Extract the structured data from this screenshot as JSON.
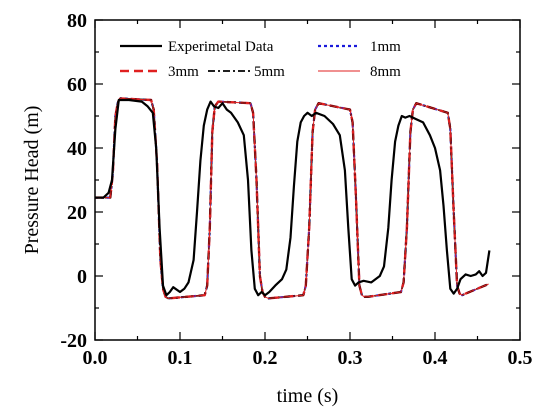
{
  "chart_data": {
    "type": "line",
    "xlabel": "time (s)",
    "ylabel": "Pressure Head (m)",
    "xlim": [
      0.0,
      0.5
    ],
    "ylim": [
      -20,
      80
    ],
    "x_ticks": [
      "0.0",
      "0.1",
      "0.2",
      "0.3",
      "0.4",
      "0.5"
    ],
    "y_ticks": [
      "-20",
      "0",
      "20",
      "40",
      "60",
      "80"
    ],
    "grid": false,
    "legend_position": "top",
    "series": [
      {
        "name": "Experimetal Data",
        "color": "#000000",
        "style": "solid",
        "x": [
          0.0,
          0.01,
          0.016,
          0.02,
          0.024,
          0.028,
          0.04,
          0.055,
          0.062,
          0.068,
          0.072,
          0.076,
          0.08,
          0.084,
          0.088,
          0.092,
          0.1,
          0.105,
          0.11,
          0.116,
          0.12,
          0.124,
          0.128,
          0.132,
          0.136,
          0.14,
          0.145,
          0.15,
          0.155,
          0.16,
          0.168,
          0.175,
          0.18,
          0.184,
          0.188,
          0.192,
          0.196,
          0.2,
          0.205,
          0.212,
          0.22,
          0.225,
          0.23,
          0.234,
          0.238,
          0.242,
          0.246,
          0.25,
          0.255,
          0.26,
          0.27,
          0.28,
          0.288,
          0.294,
          0.298,
          0.302,
          0.306,
          0.31,
          0.316,
          0.325,
          0.335,
          0.34,
          0.345,
          0.349,
          0.353,
          0.357,
          0.361,
          0.365,
          0.37,
          0.378,
          0.386,
          0.394,
          0.4,
          0.406,
          0.41,
          0.414,
          0.418,
          0.422,
          0.426,
          0.43,
          0.436,
          0.442,
          0.448,
          0.452,
          0.456,
          0.46,
          0.464
        ],
        "y": [
          24.5,
          24.5,
          26,
          30,
          46,
          55,
          55,
          54.5,
          53,
          51,
          40,
          15,
          -3,
          -6,
          -5,
          -3.5,
          -5,
          -4,
          -2,
          5,
          20,
          36,
          47,
          52,
          54.5,
          53,
          52.5,
          54,
          52,
          51,
          48,
          44,
          30,
          8,
          -4,
          -6,
          -5,
          -6,
          -5,
          -3,
          -1,
          2,
          12,
          28,
          42,
          48,
          50,
          51,
          50,
          51,
          50,
          47.5,
          44,
          33,
          15,
          -1,
          -3,
          -2,
          -1.5,
          -2,
          0,
          3,
          15,
          30,
          42,
          47,
          50,
          49.5,
          50,
          49,
          48,
          44,
          40,
          33,
          22,
          8,
          -4,
          -5.5,
          -4,
          -1,
          0.5,
          0,
          0.5,
          1.5,
          0,
          1,
          8
        ]
      },
      {
        "name": "1mm",
        "color": "#1a1adb",
        "style": "dotted",
        "x": [
          0.0,
          0.018,
          0.021,
          0.024,
          0.027,
          0.03,
          0.066,
          0.069,
          0.073,
          0.077,
          0.08,
          0.083,
          0.086,
          0.129,
          0.132,
          0.135,
          0.138,
          0.141,
          0.145,
          0.183,
          0.186,
          0.19,
          0.194,
          0.197,
          0.2,
          0.204,
          0.245,
          0.248,
          0.252,
          0.256,
          0.259,
          0.263,
          0.3,
          0.303,
          0.307,
          0.311,
          0.314,
          0.317,
          0.321,
          0.36,
          0.363,
          0.367,
          0.371,
          0.374,
          0.378,
          0.415,
          0.418,
          0.422,
          0.426,
          0.429,
          0.432,
          0.436,
          0.463
        ],
        "y": [
          24.5,
          24.5,
          32,
          50,
          54.5,
          55.5,
          55,
          52,
          35,
          5,
          -4,
          -6.5,
          -7,
          -6,
          -3,
          15,
          45,
          53,
          54.5,
          54,
          51,
          30,
          0,
          -5,
          -6.5,
          -7,
          -6,
          -3,
          15,
          45,
          52,
          54,
          52,
          48,
          25,
          -3,
          -6,
          -6.5,
          -6.5,
          -5,
          -2,
          15,
          45,
          52,
          54,
          51,
          46,
          20,
          -3,
          -5.5,
          -6,
          -5.5,
          -2.5
        ]
      },
      {
        "name": "3mm",
        "color": "#e02020",
        "style": "dashed",
        "x": [
          0.0,
          0.018,
          0.021,
          0.024,
          0.027,
          0.03,
          0.066,
          0.069,
          0.073,
          0.077,
          0.08,
          0.083,
          0.086,
          0.129,
          0.132,
          0.135,
          0.138,
          0.141,
          0.145,
          0.183,
          0.186,
          0.19,
          0.194,
          0.197,
          0.2,
          0.204,
          0.245,
          0.248,
          0.252,
          0.256,
          0.259,
          0.263,
          0.3,
          0.303,
          0.307,
          0.311,
          0.314,
          0.317,
          0.321,
          0.36,
          0.363,
          0.367,
          0.371,
          0.374,
          0.378,
          0.415,
          0.418,
          0.422,
          0.426,
          0.429,
          0.432,
          0.436,
          0.463
        ],
        "y": [
          24.5,
          24.5,
          32,
          50,
          54.5,
          55.5,
          55,
          52,
          35,
          5,
          -4,
          -6.5,
          -7,
          -6,
          -3,
          15,
          45,
          53,
          54.5,
          54,
          51,
          30,
          0,
          -5,
          -6.5,
          -7,
          -6,
          -3,
          15,
          45,
          52,
          54,
          52,
          48,
          25,
          -3,
          -6,
          -6.5,
          -6.5,
          -5,
          -2,
          15,
          45,
          52,
          54,
          51,
          46,
          20,
          -3,
          -5.5,
          -6,
          -5.5,
          -2.5
        ]
      },
      {
        "name": "5mm",
        "color": "#000000",
        "style": "dashdot",
        "x": [
          0.0,
          0.018,
          0.021,
          0.024,
          0.027,
          0.03,
          0.066,
          0.069,
          0.073,
          0.077,
          0.08,
          0.083,
          0.086,
          0.129,
          0.132,
          0.135,
          0.138,
          0.141,
          0.145,
          0.183,
          0.186,
          0.19,
          0.194,
          0.197,
          0.2,
          0.204,
          0.245,
          0.248,
          0.252,
          0.256,
          0.259,
          0.263,
          0.3,
          0.303,
          0.307,
          0.311,
          0.314,
          0.317,
          0.321,
          0.36,
          0.363,
          0.367,
          0.371,
          0.374,
          0.378,
          0.415,
          0.418,
          0.422,
          0.426,
          0.429,
          0.432,
          0.436,
          0.463
        ],
        "y": [
          24.5,
          24.5,
          32,
          50,
          54.5,
          55.5,
          55,
          52,
          35,
          5,
          -4,
          -6.5,
          -7,
          -6,
          -3,
          15,
          45,
          53,
          54.5,
          54,
          51,
          30,
          0,
          -5,
          -6.5,
          -7,
          -6,
          -3,
          15,
          45,
          52,
          54,
          52,
          48,
          25,
          -3,
          -6,
          -6.5,
          -6.5,
          -5,
          -2,
          15,
          45,
          52,
          54,
          51,
          46,
          20,
          -3,
          -5.5,
          -6,
          -5.5,
          -2.5
        ]
      },
      {
        "name": "8mm",
        "color": "#e02020",
        "style": "solid-thin",
        "x": [
          0.0,
          0.018,
          0.021,
          0.024,
          0.027,
          0.03,
          0.066,
          0.069,
          0.073,
          0.077,
          0.08,
          0.083,
          0.086,
          0.129,
          0.132,
          0.135,
          0.138,
          0.141,
          0.145,
          0.183,
          0.186,
          0.19,
          0.194,
          0.197,
          0.2,
          0.204,
          0.245,
          0.248,
          0.252,
          0.256,
          0.259,
          0.263,
          0.3,
          0.303,
          0.307,
          0.311,
          0.314,
          0.317,
          0.321,
          0.36,
          0.363,
          0.367,
          0.371,
          0.374,
          0.378,
          0.415,
          0.418,
          0.422,
          0.426,
          0.429,
          0.432,
          0.436,
          0.463
        ],
        "y": [
          24.5,
          24.5,
          32,
          50,
          54.5,
          55.5,
          55,
          52,
          35,
          5,
          -4,
          -6.5,
          -7,
          -6,
          -3,
          15,
          45,
          53,
          54.5,
          54,
          51,
          30,
          0,
          -5,
          -6.5,
          -7,
          -6,
          -3,
          15,
          45,
          52,
          54,
          52,
          48,
          25,
          -3,
          -6,
          -6.5,
          -6.5,
          -5,
          -2,
          15,
          45,
          52,
          54,
          51,
          46,
          20,
          -3,
          -5.5,
          -6,
          -5.5,
          -2.5
        ]
      }
    ]
  }
}
